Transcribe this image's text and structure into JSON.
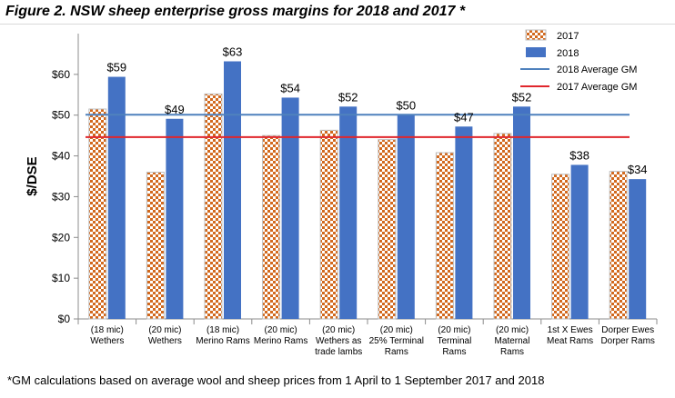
{
  "figure": {
    "title": "Figure 2. NSW sheep enterprise gross margins for 2018 and 2017 *",
    "footnote": "*GM calculations based on average wool and sheep prices from 1 April to 1 September 2017 and 2018"
  },
  "chart_data": {
    "type": "bar",
    "title": "Figure 2. NSW sheep enterprise gross margins for 2018 and 2017 *",
    "xlabel": "",
    "ylabel": "$/DSE",
    "ylim": [
      0,
      70
    ],
    "yticks": [
      0,
      10,
      20,
      30,
      40,
      50,
      60
    ],
    "ytick_labels": [
      "$0",
      "$10",
      "$20",
      "$30",
      "$40",
      "$50",
      "$60"
    ],
    "grid": false,
    "legend_position": "top-right",
    "categories": [
      [
        "(18 mic)",
        "Wethers"
      ],
      [
        "(20 mic)",
        "Wethers"
      ],
      [
        "(18 mic)",
        "Merino Rams"
      ],
      [
        "(20 mic)",
        "Merino Rams"
      ],
      [
        "(20 mic)",
        "Wethers as",
        "trade lambs"
      ],
      [
        "(20 mic)",
        "25% Terminal",
        "Rams"
      ],
      [
        "(20 mic)",
        "Terminal",
        "Rams"
      ],
      [
        "(20 mic)",
        "Maternal",
        "Rams"
      ],
      [
        "1st X Ewes",
        "Meat Rams"
      ],
      [
        "Dorper Ewes",
        "Dorper Rams"
      ]
    ],
    "series": [
      {
        "name": "2017",
        "values": [
          51.5,
          36,
          55.2,
          45,
          46.3,
          44,
          40.8,
          45.5,
          35.5,
          36.2
        ],
        "color": "#c0504d",
        "pattern": "diamond-checker"
      },
      {
        "name": "2018",
        "values": [
          59.4,
          49.1,
          63.2,
          54.3,
          52.1,
          50.1,
          47.2,
          52.1,
          37.8,
          34.3
        ],
        "data_labels": [
          "$59",
          "$49",
          "$63",
          "$54",
          "$52",
          "$50",
          "$47",
          "$52",
          "$38",
          "$34"
        ],
        "color": "#4472c4"
      }
    ],
    "reference_lines": [
      {
        "name": "2018 Average GM",
        "value": 50.1,
        "color": "#4f81bd"
      },
      {
        "name": "2017 Average GM",
        "value": 44.6,
        "color": "#e0262c"
      }
    ]
  }
}
